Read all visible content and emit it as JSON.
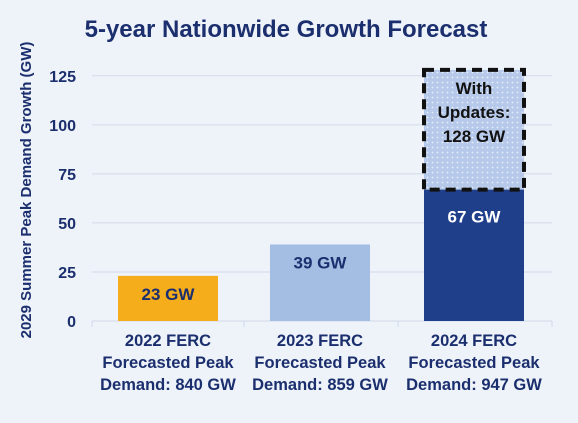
{
  "colors": {
    "background": "#eef2f9",
    "text": "#1b2f6e",
    "grid": "#d3dbe9",
    "bar_2022": "#f5ad1c",
    "bar_2023": "#a3bde3",
    "bar_2024": "#1f3f8a",
    "bar_updates": "#b6c9ea"
  },
  "chart_data": {
    "type": "bar",
    "title": "5-year Nationwide Growth Forecast",
    "ylabel": "2029 Summer Peak Demand Growth (GW)",
    "xlabel": "",
    "ylim": [
      0,
      130
    ],
    "yticks": [
      "0",
      "25",
      "50",
      "75",
      "100",
      "125"
    ],
    "grid": true,
    "categories": [
      [
        "2022 FERC",
        "Forecasted Peak",
        "Demand: 840 GW"
      ],
      [
        "2023 FERC",
        "Forecasted Peak",
        "Demand: 859 GW"
      ],
      [
        "2024 FERC",
        "Forecasted Peak",
        "Demand: 947 GW"
      ]
    ],
    "values": [
      23,
      39,
      67
    ],
    "data_labels": [
      "23 GW",
      "39 GW",
      "67 GW"
    ],
    "updates": {
      "category_index": 2,
      "value": 128,
      "label": [
        "With",
        "Updates:",
        "128 GW"
      ]
    }
  }
}
